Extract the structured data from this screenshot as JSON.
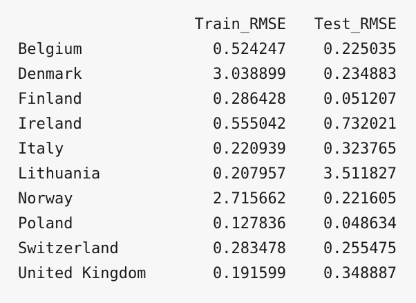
{
  "table": {
    "columns": [
      "Train_RMSE",
      "Test_RMSE"
    ],
    "rows": [
      {
        "index": "Belgium",
        "train": "0.524247",
        "test": "0.225035"
      },
      {
        "index": "Denmark",
        "train": "3.038899",
        "test": "0.234883"
      },
      {
        "index": "Finland",
        "train": "0.286428",
        "test": "0.051207"
      },
      {
        "index": "Ireland",
        "train": "0.555042",
        "test": "0.732021"
      },
      {
        "index": "Italy",
        "train": "0.220939",
        "test": "0.323765"
      },
      {
        "index": "Lithuania",
        "train": "0.207957",
        "test": "3.511827"
      },
      {
        "index": "Norway",
        "train": "2.715662",
        "test": "0.221605"
      },
      {
        "index": "Poland",
        "train": "0.127836",
        "test": "0.048634"
      },
      {
        "index": "Switzerland",
        "train": "0.283478",
        "test": "0.255475"
      },
      {
        "index": "United Kingdom",
        "train": "0.191599",
        "test": "0.348887"
      }
    ]
  }
}
